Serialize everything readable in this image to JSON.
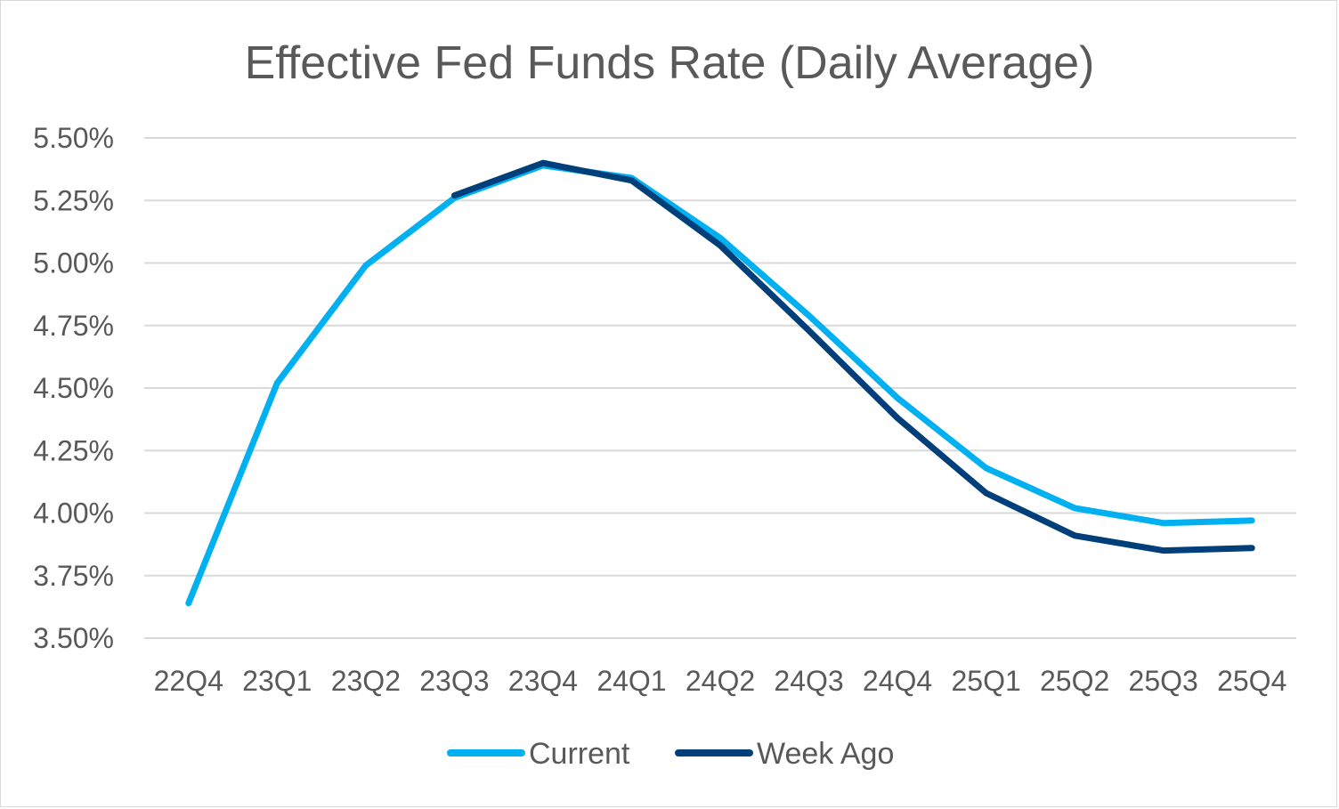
{
  "chart_data": {
    "type": "line",
    "title": "Effective Fed Funds Rate (Daily Average)",
    "categories": [
      "22Q4",
      "23Q1",
      "23Q2",
      "23Q3",
      "23Q4",
      "24Q1",
      "24Q2",
      "24Q3",
      "24Q4",
      "25Q1",
      "25Q2",
      "25Q3",
      "25Q4"
    ],
    "y_ticks": [
      "3.50%",
      "3.75%",
      "4.00%",
      "4.25%",
      "4.50%",
      "4.75%",
      "5.00%",
      "5.25%",
      "5.50%"
    ],
    "ylim": [
      3.5,
      5.5
    ],
    "grid": true,
    "legend_position": "bottom",
    "series": [
      {
        "name": "Current",
        "color": "#00b0f0",
        "values": [
          3.64,
          4.52,
          4.99,
          5.26,
          5.39,
          5.34,
          5.1,
          4.79,
          4.46,
          4.18,
          4.02,
          3.96,
          3.97
        ]
      },
      {
        "name": "Week Ago",
        "color": "#003f7a",
        "values": [
          null,
          null,
          null,
          5.27,
          5.4,
          5.33,
          5.07,
          4.73,
          4.38,
          4.08,
          3.91,
          3.85,
          3.86
        ]
      }
    ]
  }
}
